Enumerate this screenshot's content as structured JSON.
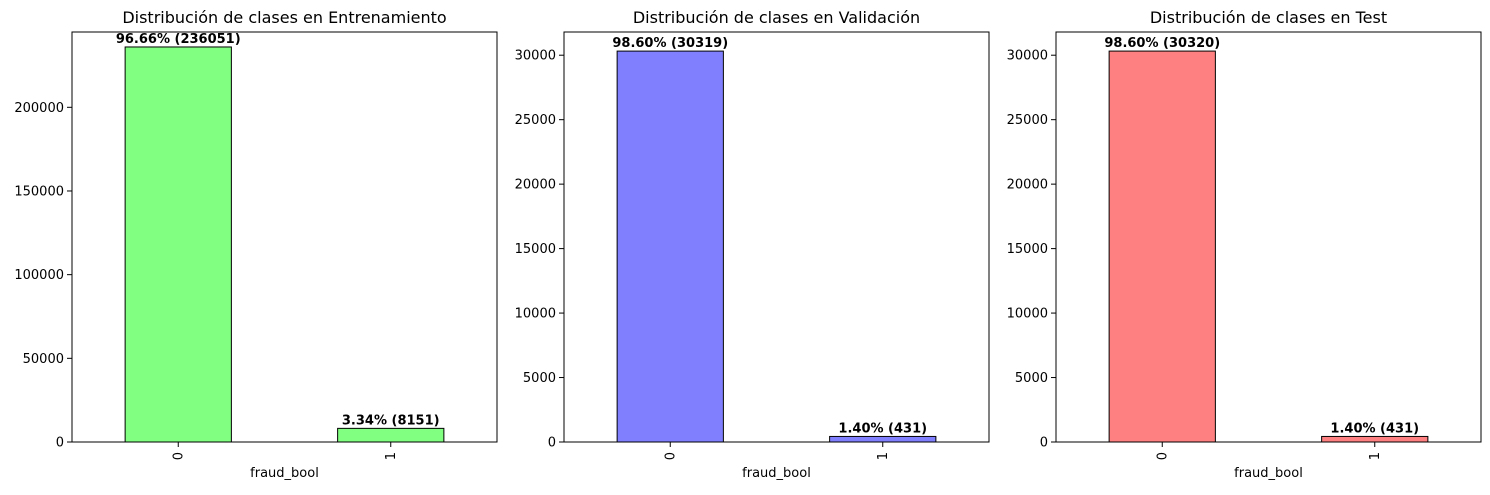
{
  "chart_data": [
    {
      "type": "bar",
      "title": "Distribución de clases en Entrenamiento",
      "xlabel": "fraud_bool",
      "ylabel": "",
      "categories": [
        "0",
        "1"
      ],
      "values": [
        236051,
        8151
      ],
      "data_labels": [
        "96.66% (236051)",
        "3.34% (8151)"
      ],
      "ylim": [
        0,
        245000
      ],
      "yticks": [
        0,
        50000,
        100000,
        150000,
        200000
      ],
      "bar_color": "#80ff80",
      "edge_color": "#000000",
      "grid": false
    },
    {
      "type": "bar",
      "title": "Distribución de clases en Validación",
      "xlabel": "fraud_bool",
      "ylabel": "",
      "categories": [
        "0",
        "1"
      ],
      "values": [
        30319,
        431
      ],
      "data_labels": [
        "98.60% (30319)",
        "1.40% (431)"
      ],
      "ylim": [
        0,
        31800
      ],
      "yticks": [
        0,
        5000,
        10000,
        15000,
        20000,
        25000,
        30000
      ],
      "bar_color": "#8080ff",
      "edge_color": "#000000",
      "grid": false
    },
    {
      "type": "bar",
      "title": "Distribución de clases en Test",
      "xlabel": "fraud_bool",
      "ylabel": "",
      "categories": [
        "0",
        "1"
      ],
      "values": [
        30320,
        431
      ],
      "data_labels": [
        "98.60% (30320)",
        "1.40% (431)"
      ],
      "ylim": [
        0,
        31800
      ],
      "yticks": [
        0,
        5000,
        10000,
        15000,
        20000,
        25000,
        30000
      ],
      "bar_color": "#ff8080",
      "edge_color": "#000000",
      "grid": false
    }
  ]
}
